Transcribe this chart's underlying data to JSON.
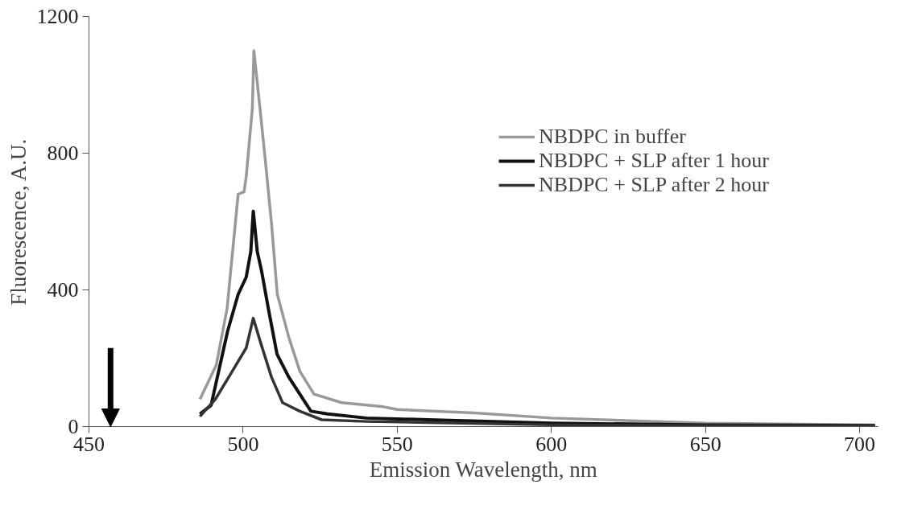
{
  "chart_data": {
    "type": "line",
    "xlabel": "Emission Wavelength, nm",
    "ylabel": "Fluorescence, A.U.",
    "xlim": [
      450,
      706
    ],
    "xticks": [
      450,
      500,
      550,
      600,
      650,
      700
    ],
    "ylim": [
      0,
      1200
    ],
    "yticks": [
      0,
      400,
      800,
      1200
    ],
    "grid": false,
    "legend": "top right",
    "marker": "none",
    "line_style": "solid",
    "series": [
      {
        "name": "NBDPC in buffer",
        "color": "#999999",
        "x": [
          486,
          491.3,
          494.8,
          498.4,
          500.3,
          501,
          503,
          503.5,
          505.7,
          507.4,
          509.2,
          511.1,
          514.8,
          518.4,
          523,
          532,
          545.5,
          550,
          575,
          600,
          650,
          705
        ],
        "values": [
          80,
          180,
          345,
          680,
          687,
          730,
          930,
          1100,
          912,
          762,
          596,
          387,
          262,
          162,
          95,
          70,
          58,
          50,
          40,
          25,
          10,
          5
        ]
      },
      {
        "name": "NBDPC + SLP after 1 hour",
        "color": "#111111",
        "x": [
          486,
          489.6,
          495,
          498.4,
          501,
          502.5,
          503.3,
          504.6,
          506,
          508.2,
          511,
          514.8,
          518.4,
          522,
          527.4,
          540,
          560,
          600,
          650,
          705
        ],
        "values": [
          37,
          62,
          280,
          387,
          437,
          512,
          630,
          512,
          455,
          345,
          212,
          145,
          95,
          45,
          37,
          25,
          20,
          10,
          5,
          3
        ]
      },
      {
        "name": "NBDPC + SLP after 2 hour",
        "color": "#333333",
        "x": [
          486,
          491,
          496.5,
          501,
          503.3,
          505.7,
          509.2,
          512.8,
          518.4,
          525.5,
          540,
          560,
          600,
          650,
          705
        ],
        "values": [
          30,
          80,
          162,
          230,
          317,
          245,
          145,
          70,
          45,
          20,
          15,
          12,
          5,
          3,
          2
        ]
      }
    ]
  }
}
